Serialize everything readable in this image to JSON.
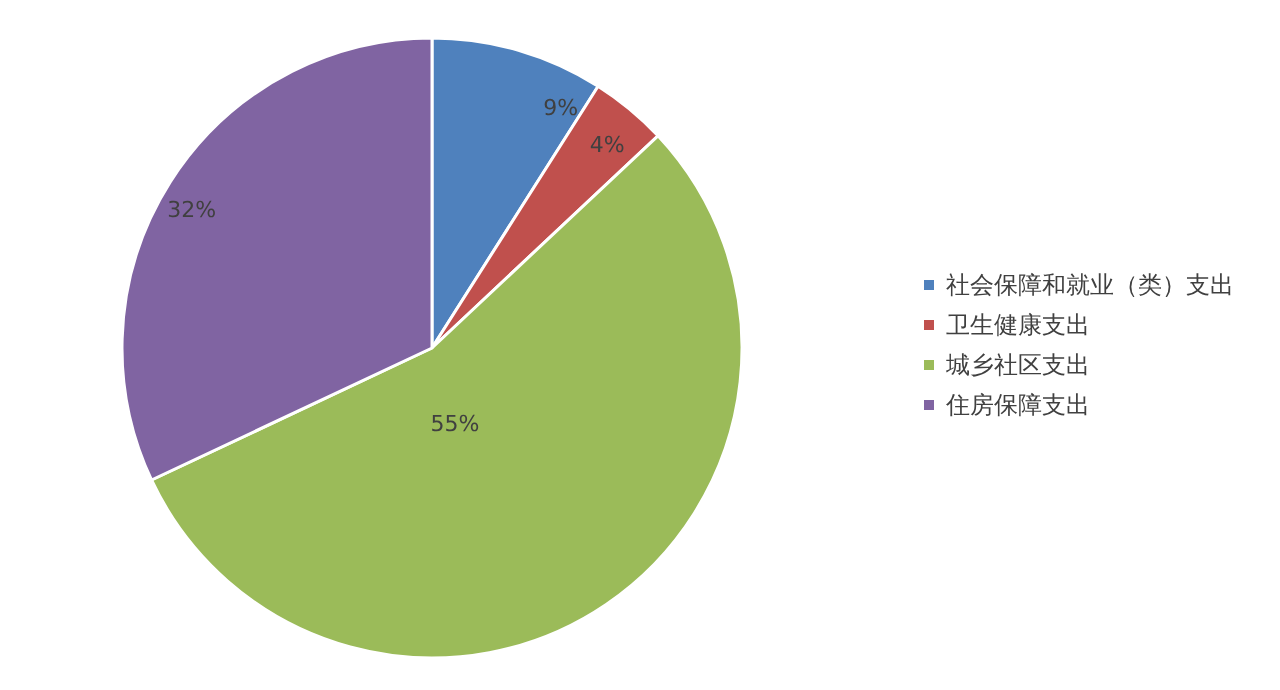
{
  "chart_data": {
    "type": "pie",
    "categories": [
      "社会保障和就业（类）支出",
      "卫生健康支出",
      "城乡社区支出",
      "住房保障支出"
    ],
    "values": [
      9,
      4,
      55,
      32
    ],
    "colors": [
      "#4f81bd",
      "#c0504d",
      "#9bbb59",
      "#8064a2"
    ],
    "value_labels": [
      "9%",
      "4%",
      "55%",
      "32%"
    ],
    "legend": "right"
  }
}
